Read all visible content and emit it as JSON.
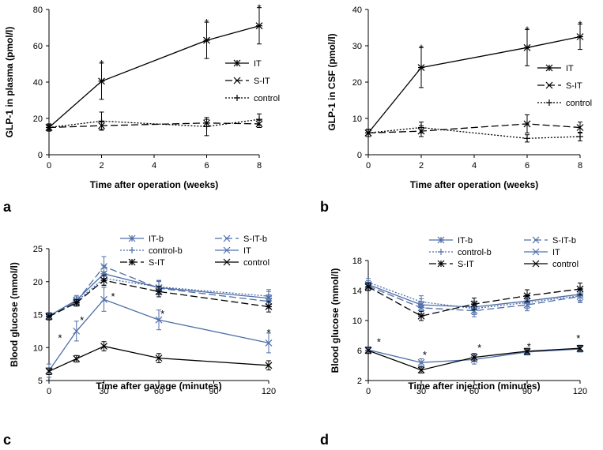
{
  "panels": {
    "a": {
      "label": "a"
    },
    "b": {
      "label": "b"
    },
    "c": {
      "label": "c"
    },
    "d": {
      "label": "d"
    }
  },
  "chart_data": [
    {
      "id": "a",
      "type": "line",
      "xlabel": "Time after operation  (weeks)",
      "ylabel": "GLP-1 in plasma (pmol/l)",
      "xlim": [
        0,
        8
      ],
      "xticks": [
        0,
        2,
        4,
        6,
        8
      ],
      "ylim": [
        0,
        80
      ],
      "yticks": [
        0,
        20,
        40,
        60,
        80
      ],
      "x": [
        0,
        2,
        6,
        8
      ],
      "legend_position": "right",
      "series": [
        {
          "name": "IT",
          "values": [
            15,
            40.5,
            63,
            71
          ],
          "err": [
            2,
            10,
            10,
            10
          ],
          "color": "#000000",
          "dash": "solid",
          "marker": "asterisk"
        },
        {
          "name": "S-IT",
          "values": [
            15,
            16,
            17.5,
            17
          ],
          "err": [
            1.5,
            2,
            2,
            2
          ],
          "color": "#000000",
          "dash": "long",
          "marker": "x"
        },
        {
          "name": "control",
          "values": [
            15,
            18.5,
            15.5,
            19.5
          ],
          "err": [
            1,
            5,
            5,
            3
          ],
          "color": "#000000",
          "dash": "dot",
          "marker": "plus"
        }
      ],
      "annotations": [
        {
          "x": 2,
          "y": 50.5,
          "text": "*"
        },
        {
          "x": 6,
          "y": 73,
          "text": "*"
        },
        {
          "x": 8,
          "y": 81,
          "text": "*"
        }
      ]
    },
    {
      "id": "b",
      "type": "line",
      "xlabel": "Time after operation  (weeks)",
      "ylabel": "GLP-1 in CSF (pmol/l)",
      "xlim": [
        0,
        8
      ],
      "xticks": [
        0,
        2,
        4,
        6,
        8
      ],
      "ylim": [
        0,
        40
      ],
      "yticks": [
        0,
        10,
        20,
        30,
        40
      ],
      "x": [
        0,
        2,
        6,
        8
      ],
      "legend_position": "right",
      "series": [
        {
          "name": "IT",
          "values": [
            6,
            24,
            29.5,
            32.5
          ],
          "err": [
            1,
            5.5,
            5,
            3.5
          ],
          "color": "#000000",
          "dash": "solid",
          "marker": "asterisk"
        },
        {
          "name": "S-IT",
          "values": [
            6,
            6.5,
            8.5,
            7.5
          ],
          "err": [
            1,
            1.5,
            2.5,
            1.5
          ],
          "color": "#000000",
          "dash": "long",
          "marker": "x"
        },
        {
          "name": "control",
          "values": [
            6,
            7.5,
            4.5,
            5
          ],
          "err": [
            1,
            1.5,
            1,
            1.2
          ],
          "color": "#000000",
          "dash": "dot",
          "marker": "plus"
        }
      ],
      "annotations": [
        {
          "x": 2,
          "y": 29.5,
          "text": "*"
        },
        {
          "x": 6,
          "y": 34.5,
          "text": "*"
        },
        {
          "x": 8,
          "y": 36,
          "text": "*"
        }
      ]
    },
    {
      "id": "c",
      "type": "line",
      "xlabel": "Time after gavage  (minutes)",
      "ylabel": "Blood glucose  (mmol/l)",
      "xlim": [
        0,
        120
      ],
      "xticks": [
        0,
        30,
        60,
        90,
        120
      ],
      "ylim": [
        5,
        25
      ],
      "yticks": [
        5,
        10,
        15,
        20,
        25
      ],
      "x": [
        0,
        15,
        30,
        60,
        120
      ],
      "legend_position": "top",
      "series": [
        {
          "name": "IT-b",
          "values": [
            14.8,
            17.2,
            21.2,
            19.1,
            17.5
          ],
          "err": [
            0.5,
            0.7,
            1.2,
            1.0,
            1.0
          ],
          "color": "#4f6fa8",
          "dash": "solid",
          "marker": "asterisk"
        },
        {
          "name": "S-IT-b",
          "values": [
            14.8,
            17,
            22.3,
            19,
            17
          ],
          "err": [
            0.5,
            0.7,
            1.5,
            1.0,
            1.0
          ],
          "color": "#4f6fa8",
          "dash": "long",
          "marker": "x"
        },
        {
          "name": "control-b",
          "values": [
            14.8,
            17,
            20.5,
            19.2,
            17.8
          ],
          "err": [
            0.5,
            0.7,
            1.0,
            1.0,
            1.0
          ],
          "color": "#4f6fa8",
          "dash": "dot",
          "marker": "plus"
        },
        {
          "name": "IT",
          "values": [
            6.5,
            12.5,
            17.3,
            14.2,
            10.7
          ],
          "err": [
            1,
            1.5,
            1.8,
            1.5,
            1.5
          ],
          "color": "#4f6fa8",
          "dash": "solid",
          "marker": "x"
        },
        {
          "name": "S-IT",
          "values": [
            14.7,
            16.8,
            20.2,
            18.5,
            16.2
          ],
          "err": [
            0.5,
            0.5,
            0.8,
            0.8,
            0.8
          ],
          "color": "#000000",
          "dash": "long",
          "marker": "asterisk"
        },
        {
          "name": "control",
          "values": [
            6.4,
            8.3,
            10.2,
            8.4,
            7.3
          ],
          "err": [
            0.5,
            0.5,
            0.7,
            0.7,
            0.7
          ],
          "color": "#000000",
          "dash": "solid",
          "marker": "x"
        }
      ],
      "annotations": [
        {
          "x": 6,
          "y": 11.5,
          "text": "*"
        },
        {
          "x": 18,
          "y": 14.2,
          "text": "*"
        },
        {
          "x": 35,
          "y": 17.8,
          "text": "*"
        },
        {
          "x": 62,
          "y": 15.2,
          "text": "*"
        },
        {
          "x": 120,
          "y": 12.3,
          "text": "*"
        }
      ]
    },
    {
      "id": "d",
      "type": "line",
      "xlabel": "Time after injection  (minutes)",
      "ylabel": "Blood glucose  (mmol/l)",
      "xlim": [
        0,
        120
      ],
      "xticks": [
        0,
        30,
        60,
        90,
        120
      ],
      "ylim": [
        2,
        18
      ],
      "yticks": [
        2,
        6,
        10,
        14,
        18
      ],
      "x": [
        0,
        30,
        60,
        90,
        120
      ],
      "legend_position": "top",
      "series": [
        {
          "name": "IT-b",
          "values": [
            14.8,
            12.1,
            11.8,
            12.6,
            13.5
          ],
          "err": [
            0.5,
            0.8,
            0.8,
            0.8,
            0.8
          ],
          "color": "#4f6fa8",
          "dash": "solid",
          "marker": "asterisk"
        },
        {
          "name": "S-IT-b",
          "values": [
            14.6,
            11.7,
            11.3,
            12.1,
            13.2
          ],
          "err": [
            0.5,
            0.8,
            0.8,
            0.8,
            0.8
          ],
          "color": "#4f6fa8",
          "dash": "long",
          "marker": "x"
        },
        {
          "name": "control-b",
          "values": [
            15.1,
            12.5,
            11.6,
            12.4,
            13.3
          ],
          "err": [
            0.5,
            0.8,
            0.8,
            0.8,
            0.8
          ],
          "color": "#4f6fa8",
          "dash": "dot",
          "marker": "plus"
        },
        {
          "name": "IT",
          "values": [
            6.1,
            4.4,
            4.8,
            5.8,
            6.2
          ],
          "err": [
            0.4,
            0.5,
            0.6,
            0.4,
            0.4
          ],
          "color": "#4f6fa8",
          "dash": "solid",
          "marker": "x"
        },
        {
          "name": "S-IT",
          "values": [
            14.5,
            10.6,
            12.2,
            13.3,
            14.2
          ],
          "err": [
            0.5,
            0.6,
            0.8,
            0.8,
            0.8
          ],
          "color": "#000000",
          "dash": "long",
          "marker": "asterisk"
        },
        {
          "name": "control",
          "values": [
            6.0,
            3.4,
            5.1,
            5.9,
            6.3
          ],
          "err": [
            0.4,
            0.4,
            0.5,
            0.4,
            0.4
          ],
          "color": "#000000",
          "dash": "solid",
          "marker": "x"
        }
      ],
      "annotations": [
        {
          "x": 6,
          "y": 7.2,
          "text": "*"
        },
        {
          "x": 32,
          "y": 5.5,
          "text": "*"
        },
        {
          "x": 63,
          "y": 6.4,
          "text": "*"
        },
        {
          "x": 91,
          "y": 6.6,
          "text": "*"
        },
        {
          "x": 119,
          "y": 7.7,
          "text": "*"
        }
      ]
    }
  ]
}
